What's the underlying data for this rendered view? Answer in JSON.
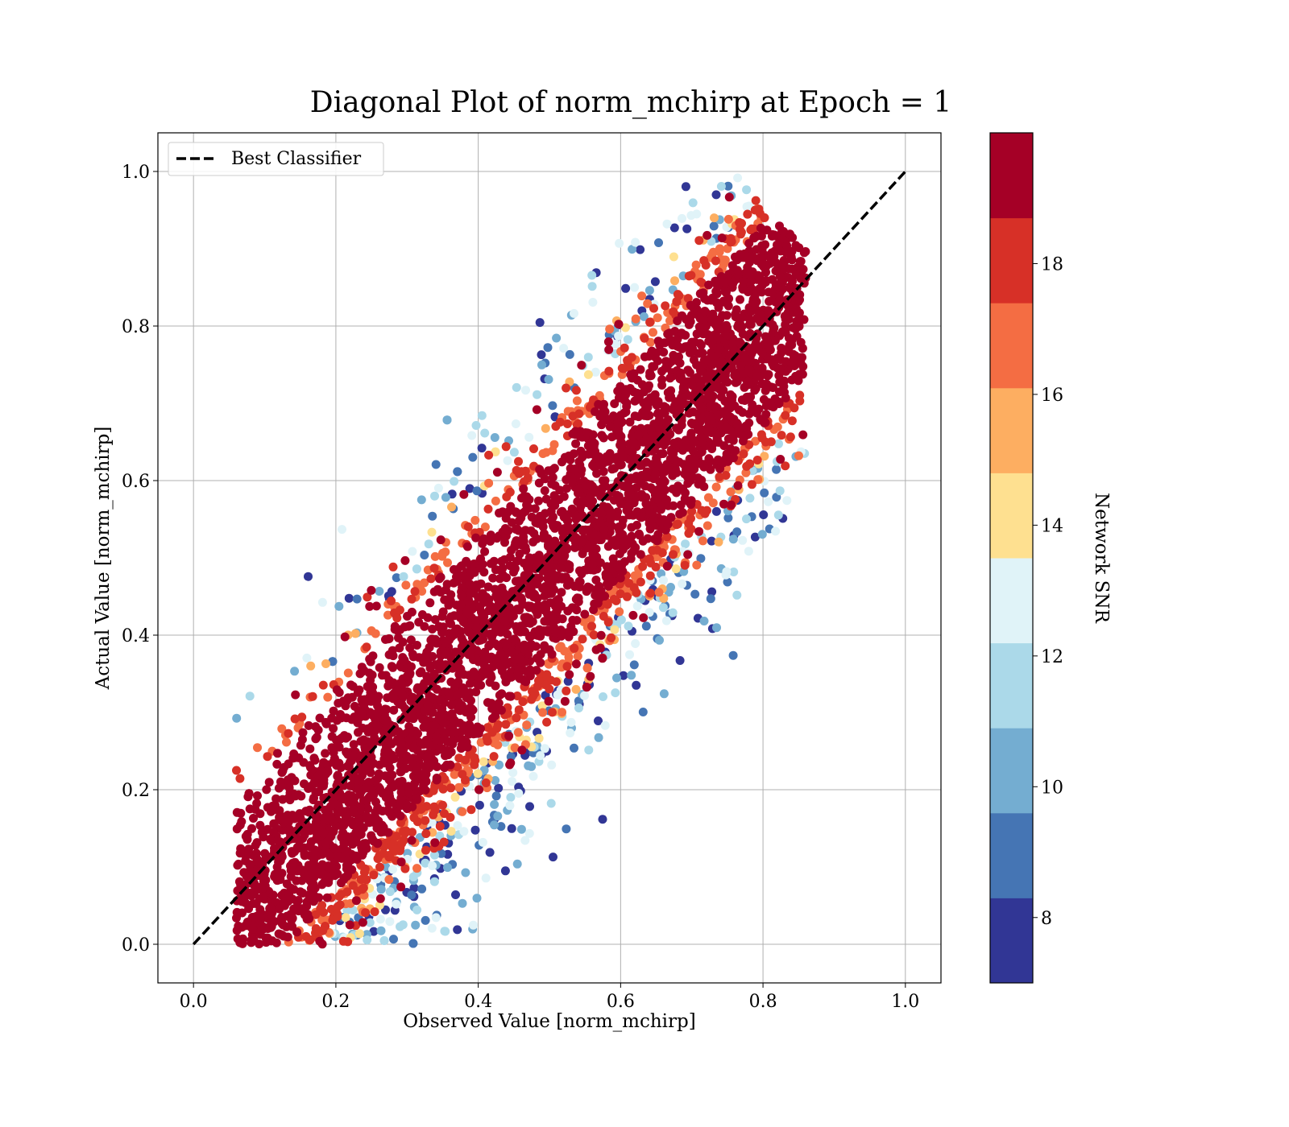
{
  "chart_data": {
    "type": "scatter",
    "title": "Diagonal Plot of norm_mchirp at Epoch = 1",
    "xlabel": "Observed Value [norm_mchirp]",
    "ylabel": "Actual Value [norm_mchirp]",
    "xlim": [
      -0.05,
      1.05
    ],
    "ylim": [
      -0.05,
      1.05
    ],
    "x_ticks": [
      0.0,
      0.2,
      0.4,
      0.6,
      0.8,
      1.0
    ],
    "y_ticks": [
      0.0,
      0.2,
      0.4,
      0.6,
      0.8,
      1.0
    ],
    "x_tick_labels": [
      "0.0",
      "0.2",
      "0.4",
      "0.6",
      "0.8",
      "1.0"
    ],
    "y_tick_labels": [
      "0.0",
      "0.2",
      "0.4",
      "0.6",
      "0.8",
      "1.0"
    ],
    "grid": true,
    "legend": {
      "placement": "upper-left",
      "entries": [
        "Best Classifier"
      ]
    },
    "reference_line": {
      "name": "Best Classifier",
      "style": "dashed",
      "color": "#000000",
      "x": [
        0.0,
        1.0
      ],
      "y": [
        0.0,
        1.0
      ]
    },
    "colorbar": {
      "label": "Network SNR",
      "range": [
        7,
        20
      ],
      "ticks": [
        8,
        10,
        12,
        14,
        16,
        18
      ],
      "tick_labels": [
        "8",
        "10",
        "12",
        "14",
        "16",
        "18"
      ],
      "colormap": "RdYlBu_r (discrete, 10 levels)",
      "levels": [
        "#313695",
        "#4575b4",
        "#74add1",
        "#abd9e9",
        "#e0f3f8",
        "#fee090",
        "#fdae61",
        "#f46d43",
        "#d73027",
        "#a50026"
      ]
    },
    "point_cloud": {
      "description_level": "approximate",
      "core_band": {
        "snr": 20,
        "intercept_range": [
          -0.12,
          0.14
        ]
      },
      "x_range": [
        0.07,
        0.85
      ],
      "y_range": [
        0.0,
        1.0
      ]
    }
  }
}
